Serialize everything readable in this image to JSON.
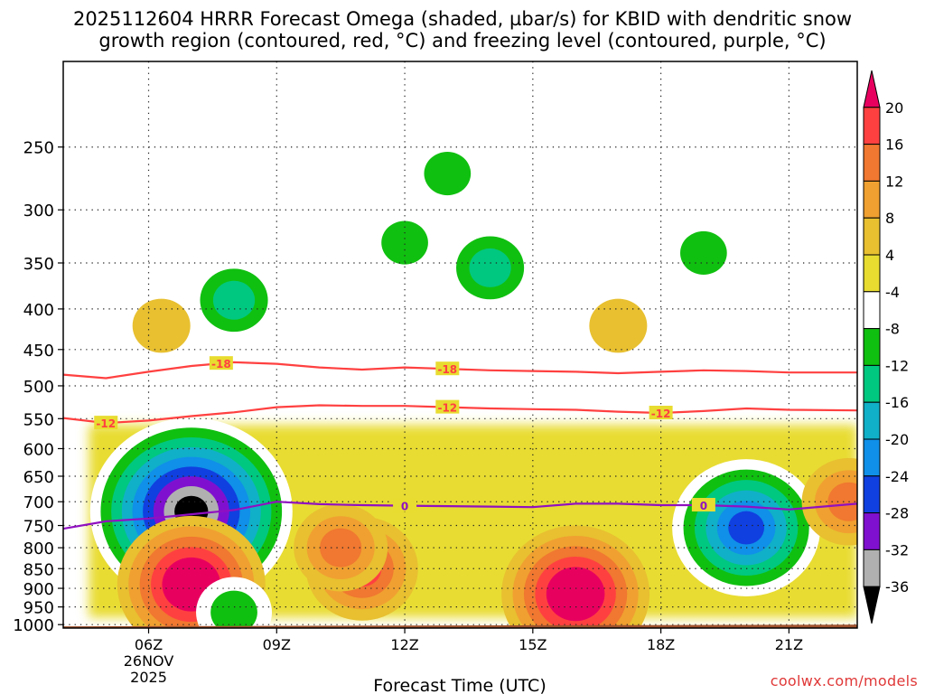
{
  "title_line1": "2025112604 HRRR Forecast Omega (shaded, µbar/s) for KBID with dendritic snow",
  "title_line2": "growth region (contoured, red, °C) and freezing level (contoured, purple, °C)",
  "credit": "coolwx.com/models",
  "chart_data": {
    "type": "heatmap",
    "title": "2025112604 HRRR Forecast Omega (shaded, µbar/s) for KBID with dendritic snow growth region (contoured, red, °C) and freezing level (contoured, purple, °C)",
    "xlabel": "Forecast Time (UTC)",
    "ylabel": "",
    "x_range_hours": [
      4,
      22.6
    ],
    "x_ticks": [
      {
        "hour": 6,
        "label": "06Z",
        "sub1": "26NOV",
        "sub2": "2025"
      },
      {
        "hour": 9,
        "label": "09Z"
      },
      {
        "hour": 12,
        "label": "12Z"
      },
      {
        "hour": 15,
        "label": "15Z"
      },
      {
        "hour": 18,
        "label": "18Z"
      },
      {
        "hour": 21,
        "label": "21Z"
      }
    ],
    "y_pressure_range_mb": [
      195,
      1010
    ],
    "y_scale": "log-pressure",
    "y_ticks": [
      250,
      300,
      350,
      400,
      450,
      500,
      550,
      600,
      650,
      700,
      750,
      800,
      850,
      900,
      950,
      1000
    ],
    "grid": true,
    "colorbar": {
      "units": "µbar/s",
      "labels": [
        "20",
        "16",
        "12",
        "8",
        "4",
        "-4",
        "-8",
        "-12",
        "-16",
        "-20",
        "-24",
        "-28",
        "-32",
        "-36"
      ],
      "colors": [
        "#e8005f",
        "#ff4040",
        "#f07830",
        "#f0a030",
        "#e8c030",
        "#e8dc30",
        "#ffffff",
        "#10c010",
        "#00c880",
        "#10b0c8",
        "#1090e8",
        "#1040e0",
        "#8010d0",
        "#b0b0b0",
        "#000000"
      ]
    },
    "omega_features": [
      {
        "hour": 6.3,
        "mb": 420,
        "value": 5
      },
      {
        "hour": 7.0,
        "mb": 720,
        "value": -36
      },
      {
        "hour": 7.0,
        "mb": 890,
        "value": 22
      },
      {
        "hour": 8.0,
        "mb": 390,
        "value": -12
      },
      {
        "hour": 8.0,
        "mb": 965,
        "value": -8
      },
      {
        "hour": 11.0,
        "mb": 850,
        "value": 17
      },
      {
        "hour": 10.5,
        "mb": 800,
        "value": 12
      },
      {
        "hour": 12.0,
        "mb": 330,
        "value": -6
      },
      {
        "hour": 14.0,
        "mb": 355,
        "value": -13
      },
      {
        "hour": 13.0,
        "mb": 270,
        "value": -6
      },
      {
        "hour": 16.0,
        "mb": 915,
        "value": 22
      },
      {
        "hour": 17.0,
        "mb": 420,
        "value": 5
      },
      {
        "hour": 19.0,
        "mb": 340,
        "value": -6
      },
      {
        "hour": 20.0,
        "mb": 755,
        "value": -22
      },
      {
        "hour": 22.4,
        "mb": 700,
        "value": 10
      }
    ],
    "contours": [
      {
        "name": "-18",
        "color": "#ff4040",
        "label": "-18",
        "label_hour": 13.0,
        "points": [
          [
            4,
            484
          ],
          [
            5,
            489
          ],
          [
            6,
            480
          ],
          [
            7,
            472
          ],
          [
            8,
            467
          ],
          [
            9,
            469
          ],
          [
            10,
            474
          ],
          [
            11,
            477
          ],
          [
            12,
            474
          ],
          [
            13,
            476
          ],
          [
            14,
            478
          ],
          [
            15,
            479
          ],
          [
            16,
            480
          ],
          [
            17,
            482
          ],
          [
            18,
            480
          ],
          [
            19,
            478
          ],
          [
            20,
            479
          ],
          [
            21,
            481
          ],
          [
            22.6,
            481
          ]
        ]
      },
      {
        "name": "-12",
        "color": "#ff4040",
        "label": "-12",
        "label_hour": 13.0,
        "points": [
          [
            4,
            549
          ],
          [
            5,
            557
          ],
          [
            6,
            553
          ],
          [
            7,
            546
          ],
          [
            8,
            540
          ],
          [
            9,
            532
          ],
          [
            10,
            529
          ],
          [
            11,
            530
          ],
          [
            12,
            530
          ],
          [
            13,
            532
          ],
          [
            14,
            534
          ],
          [
            15,
            535
          ],
          [
            16,
            536
          ],
          [
            17,
            539
          ],
          [
            18,
            541
          ],
          [
            19,
            538
          ],
          [
            20,
            534
          ],
          [
            21,
            536
          ],
          [
            22.6,
            537
          ]
        ]
      },
      {
        "name": "0",
        "color": "#9010c0",
        "label": "0",
        "label_hour": 12.0,
        "points": [
          [
            4,
            757
          ],
          [
            5,
            741
          ],
          [
            6,
            735
          ],
          [
            7,
            726
          ],
          [
            8,
            717
          ],
          [
            9,
            700
          ],
          [
            10,
            705
          ],
          [
            11,
            707
          ],
          [
            12,
            708
          ],
          [
            13,
            709
          ],
          [
            14,
            710
          ],
          [
            15,
            711
          ],
          [
            16,
            704
          ],
          [
            17,
            704
          ],
          [
            18,
            707
          ],
          [
            19,
            707
          ],
          [
            20,
            710
          ],
          [
            21,
            716
          ],
          [
            22.6,
            704
          ]
        ]
      }
    ],
    "contour_extra_labels": [
      {
        "contour": "-18",
        "hour": 7.7
      },
      {
        "contour": "-12",
        "hour": 5.0
      },
      {
        "contour": "-12",
        "hour": 18.0
      },
      {
        "contour": "0",
        "hour": 19.0
      }
    ]
  }
}
